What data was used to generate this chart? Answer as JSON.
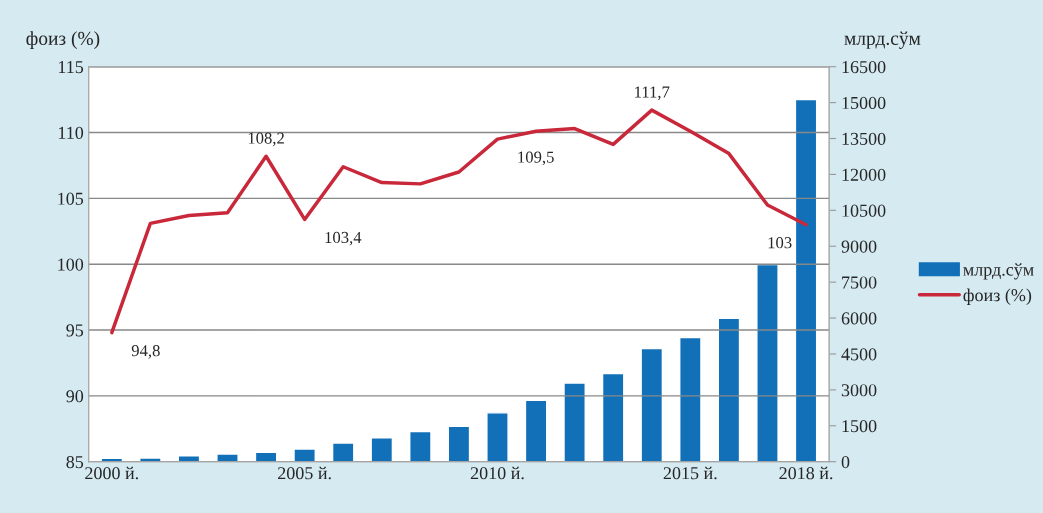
{
  "chart_data": {
    "type": "bar",
    "ylabel": "фоиз (%)",
    "y2label": "млрд.сўм",
    "categories": [
      "2000 й.",
      null,
      null,
      null,
      null,
      "2005 й.",
      null,
      null,
      null,
      null,
      "2010 й.",
      null,
      null,
      null,
      null,
      "2015 й.",
      null,
      null,
      "2018 й."
    ],
    "series": [
      {
        "name": "млрд.сўм",
        "axis": "y2",
        "color": "#1170b8",
        "values": [
          140,
          150,
          250,
          320,
          390,
          530,
          780,
          1000,
          1260,
          1480,
          2040,
          2560,
          3290,
          3680,
          4730,
          5190,
          5990,
          8230,
          15130
        ]
      },
      {
        "name": "фоиз (%)",
        "type": "line",
        "axis": "y",
        "color": "#c8283a",
        "values": [
          94.8,
          103.1,
          103.7,
          103.9,
          108.2,
          103.4,
          107.4,
          106.2,
          106.1,
          107.0,
          109.5,
          110.1,
          110.3,
          109.1,
          111.7,
          110.1,
          108.4,
          104.5,
          103.0
        ],
        "value_labels": [
          "94,8",
          null,
          null,
          null,
          "108,2",
          "103,4",
          null,
          null,
          null,
          null,
          "109,5",
          null,
          null,
          null,
          "111,7",
          null,
          null,
          null,
          "103"
        ]
      }
    ],
    "ylim": [
      85,
      115
    ],
    "yticks": [
      85,
      90,
      95,
      100,
      105,
      110,
      115
    ],
    "y2lim": [
      0,
      16500
    ],
    "y2ticks": [
      0,
      1500,
      3000,
      4500,
      6000,
      7500,
      9000,
      10500,
      12000,
      13500,
      15000,
      16500
    ],
    "grid": "y",
    "legend": "right"
  }
}
